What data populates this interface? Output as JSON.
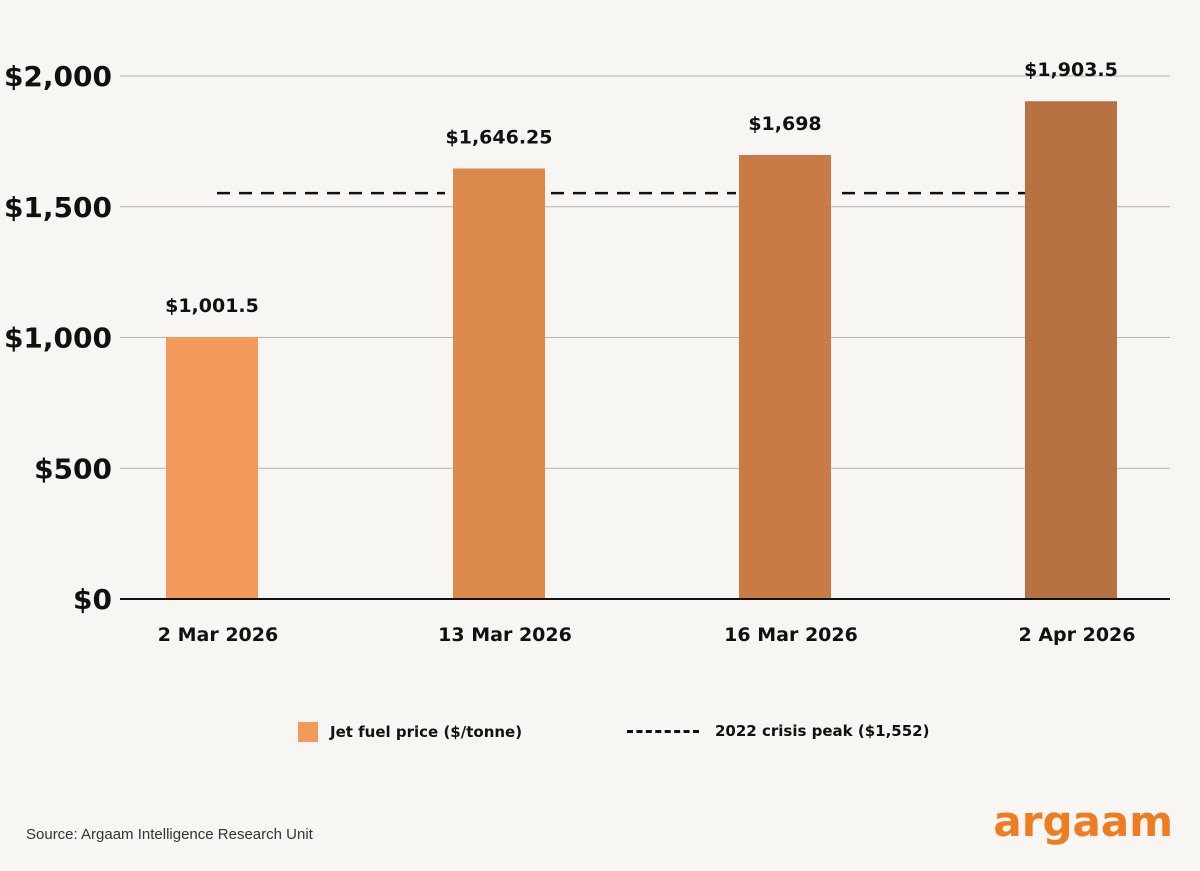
{
  "chart_data": {
    "type": "bar",
    "categories": [
      "2 Mar 2026",
      "13 Mar 2026",
      "16 Mar 2026",
      "2 Apr 2026"
    ],
    "series": [
      {
        "name": "Jet fuel price ($/tonne)",
        "values": [
          1001.5,
          1646.25,
          1698,
          1903.5
        ],
        "labels": [
          "$1,001.5",
          "$1,646.25",
          "$1,698",
          "$1,903.5"
        ],
        "colors": [
          "#f29a5a",
          "#dc8a4c",
          "#c97b45",
          "#b87141"
        ]
      }
    ],
    "reference_line": {
      "name": "2022 crisis peak ($1,552)",
      "value": 1552,
      "style": "dashed"
    },
    "yticks": [
      {
        "value": 0,
        "label": "$0"
      },
      {
        "value": 500,
        "label": "$500"
      },
      {
        "value": 1000,
        "label": "$1,000"
      },
      {
        "value": 1500,
        "label": "$1,500"
      },
      {
        "value": 2000,
        "label": "$2,000"
      }
    ],
    "ylim": [
      0,
      2000
    ],
    "grid": true,
    "legend_position": "bottom"
  },
  "legend": {
    "bar_label": "Jet fuel price ($/tonne)",
    "line_label": "2022 crisis peak ($1,552)",
    "bar_color": "#f29a5a"
  },
  "footer": {
    "source": "Source: Argaam Intelligence Research Unit",
    "logo": "argaam",
    "logo_color": "#f07c22"
  }
}
